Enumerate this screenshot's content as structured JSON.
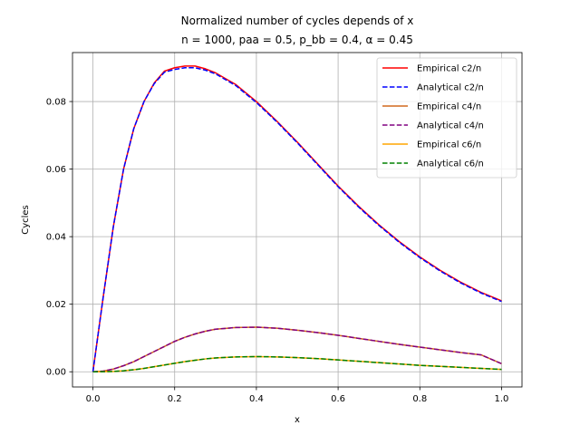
{
  "chart_data": {
    "type": "line",
    "title_line1": "Normalized number of cycles depends of x",
    "title_line2": "n = 1000, paa = 0.5, p_bb = 0.4, α = 0.45",
    "xlabel": "x",
    "ylabel": "Cycles",
    "xlim": [
      -0.05,
      1.05
    ],
    "ylim": [
      -0.0045,
      0.0945
    ],
    "xticks": [
      0.0,
      0.2,
      0.4,
      0.6,
      0.8,
      1.0
    ],
    "xtick_labels": [
      "0.0",
      "0.2",
      "0.4",
      "0.6",
      "0.8",
      "1.0"
    ],
    "yticks": [
      0.0,
      0.02,
      0.04,
      0.06,
      0.08
    ],
    "ytick_labels": [
      "0.00",
      "0.02",
      "0.04",
      "0.06",
      "0.08"
    ],
    "grid": true,
    "legend_position": "top-right",
    "x": [
      0.0,
      0.025,
      0.05,
      0.075,
      0.1,
      0.125,
      0.15,
      0.175,
      0.2,
      0.225,
      0.25,
      0.275,
      0.3,
      0.35,
      0.4,
      0.45,
      0.5,
      0.55,
      0.6,
      0.65,
      0.7,
      0.75,
      0.8,
      0.85,
      0.9,
      0.95,
      1.0
    ],
    "series": [
      {
        "name": "Empirical c2/n",
        "color": "#ff0000",
        "dash": "solid",
        "values": [
          0.0,
          0.022,
          0.043,
          0.06,
          0.072,
          0.08,
          0.0855,
          0.089,
          0.09,
          0.0905,
          0.0905,
          0.0897,
          0.0885,
          0.085,
          0.08,
          0.0742,
          0.068,
          0.0615,
          0.055,
          0.049,
          0.0435,
          0.0385,
          0.034,
          0.03,
          0.0265,
          0.0235,
          0.021
        ]
      },
      {
        "name": "Analytical c2/n",
        "color": "#0000ff",
        "dash": "dashed",
        "values": [
          0.0,
          0.022,
          0.043,
          0.06,
          0.072,
          0.08,
          0.0853,
          0.0887,
          0.0895,
          0.09,
          0.09,
          0.0893,
          0.0882,
          0.0847,
          0.0797,
          0.074,
          0.0678,
          0.0613,
          0.0548,
          0.0488,
          0.0433,
          0.0383,
          0.0338,
          0.0298,
          0.0263,
          0.0233,
          0.0208
        ]
      },
      {
        "name": "Empirical c4/n",
        "color": "#d2691e",
        "dash": "solid",
        "values": [
          0.0,
          0.0002,
          0.0008,
          0.0018,
          0.003,
          0.0045,
          0.006,
          0.0075,
          0.009,
          0.0102,
          0.0112,
          0.012,
          0.0126,
          0.0131,
          0.0132,
          0.0129,
          0.0123,
          0.0116,
          0.0108,
          0.0099,
          0.009,
          0.0081,
          0.0073,
          0.0065,
          0.0057,
          0.005,
          0.0024
        ]
      },
      {
        "name": "Analytical c4/n",
        "color": "#800080",
        "dash": "dashed",
        "values": [
          0.0,
          0.0002,
          0.0008,
          0.0018,
          0.003,
          0.0045,
          0.006,
          0.0075,
          0.009,
          0.0102,
          0.0112,
          0.012,
          0.0126,
          0.0131,
          0.0132,
          0.0129,
          0.0123,
          0.0116,
          0.0108,
          0.0099,
          0.009,
          0.0081,
          0.0073,
          0.0065,
          0.0057,
          0.005,
          0.0024
        ]
      },
      {
        "name": "Empirical c6/n",
        "color": "#ffa500",
        "dash": "solid",
        "values": [
          0.0,
          2e-05,
          0.0001,
          0.0003,
          0.0006,
          0.001,
          0.0015,
          0.002,
          0.0025,
          0.003,
          0.0034,
          0.0038,
          0.0041,
          0.0044,
          0.0045,
          0.0044,
          0.0042,
          0.0039,
          0.0035,
          0.0031,
          0.0027,
          0.0023,
          0.0019,
          0.0016,
          0.0013,
          0.001,
          0.0007
        ]
      },
      {
        "name": "Analytical c6/n",
        "color": "#008000",
        "dash": "dashed",
        "values": [
          0.0,
          2e-05,
          0.0001,
          0.0003,
          0.0006,
          0.001,
          0.0015,
          0.002,
          0.0025,
          0.003,
          0.0034,
          0.0038,
          0.0041,
          0.0044,
          0.0045,
          0.0044,
          0.0042,
          0.0039,
          0.0035,
          0.0031,
          0.0027,
          0.0023,
          0.0019,
          0.0016,
          0.0013,
          0.001,
          0.0007
        ]
      }
    ]
  }
}
